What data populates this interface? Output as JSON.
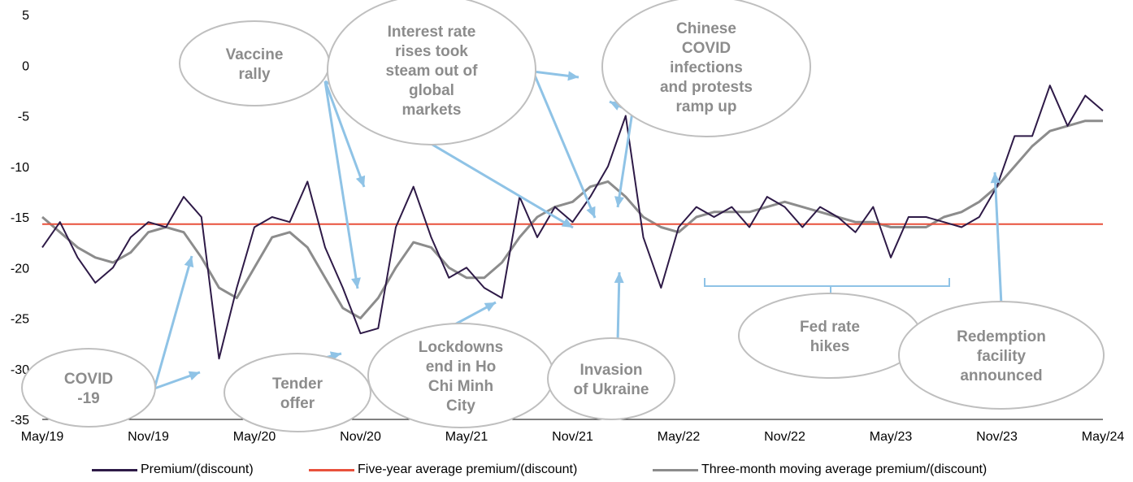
{
  "chart_data": {
    "type": "line",
    "title": "",
    "xlabel": "",
    "ylabel": "",
    "ylim": [
      -35,
      5
    ],
    "yticks": [
      5,
      0,
      -5,
      -10,
      -15,
      -20,
      -25,
      -30,
      -35
    ],
    "xticks": [
      "May/19",
      "Nov/19",
      "May/20",
      "Nov/20",
      "May/21",
      "Nov/21",
      "May/22",
      "Nov/22",
      "May/23",
      "Nov/23",
      "May/24"
    ],
    "xlim": [
      "2019-05",
      "2024-05"
    ],
    "grid": false,
    "legend_position": "bottom",
    "colors": {
      "premium": "#2e1a47",
      "average": "#e8513c",
      "moving_average": "#8c8c8c",
      "annotation_arrow": "#8fc3e6",
      "annotation_text": "#8c8c8c",
      "annotation_border": "#bfbfbf"
    },
    "series": [
      {
        "name": "Premium/(discount)",
        "x": [
          "2019-05",
          "2019-06",
          "2019-07",
          "2019-08",
          "2019-09",
          "2019-10",
          "2019-11",
          "2019-12",
          "2020-01",
          "2020-02",
          "2020-03",
          "2020-04",
          "2020-05",
          "2020-06",
          "2020-07",
          "2020-08",
          "2020-09",
          "2020-10",
          "2020-11",
          "2020-12",
          "2021-01",
          "2021-02",
          "2021-03",
          "2021-04",
          "2021-05",
          "2021-06",
          "2021-07",
          "2021-08",
          "2021-09",
          "2021-10",
          "2021-11",
          "2021-12",
          "2022-01",
          "2022-02",
          "2022-03",
          "2022-04",
          "2022-05",
          "2022-06",
          "2022-07",
          "2022-08",
          "2022-09",
          "2022-10",
          "2022-11",
          "2022-12",
          "2023-01",
          "2023-02",
          "2023-03",
          "2023-04",
          "2023-05",
          "2023-06",
          "2023-07",
          "2023-08",
          "2023-09",
          "2023-10",
          "2023-11",
          "2023-12",
          "2024-01",
          "2024-02",
          "2024-03",
          "2024-04",
          "2024-05"
        ],
        "values": [
          -18,
          -15.5,
          -19,
          -21.5,
          -20,
          -17,
          -15.5,
          -16,
          -13,
          -15,
          -29,
          -22,
          -16,
          -15,
          -15.5,
          -11.5,
          -18,
          -22,
          -26.5,
          -26,
          -16,
          -12,
          -17,
          -21,
          -20,
          -22,
          -23,
          -13,
          -17,
          -14,
          -15.5,
          -13,
          -10,
          -5,
          -17,
          -22,
          -16,
          -14,
          -15,
          -14,
          -16,
          -13,
          -14,
          -16,
          -14,
          -15,
          -16.5,
          -14,
          -19,
          -15,
          -15,
          -15.5,
          -16,
          -15,
          -12,
          -7,
          -7,
          -2,
          -6,
          -3,
          -4.5
        ]
      },
      {
        "name": "Five-year average premium/(discount)",
        "x": [
          "2019-05",
          "2024-05"
        ],
        "values": [
          -15.7,
          -15.7
        ]
      },
      {
        "name": "Three-month moving average premium/(discount)",
        "x": [
          "2019-05",
          "2019-06",
          "2019-07",
          "2019-08",
          "2019-09",
          "2019-10",
          "2019-11",
          "2019-12",
          "2020-01",
          "2020-02",
          "2020-03",
          "2020-04",
          "2020-05",
          "2020-06",
          "2020-07",
          "2020-08",
          "2020-09",
          "2020-10",
          "2020-11",
          "2020-12",
          "2021-01",
          "2021-02",
          "2021-03",
          "2021-04",
          "2021-05",
          "2021-06",
          "2021-07",
          "2021-08",
          "2021-09",
          "2021-10",
          "2021-11",
          "2021-12",
          "2022-01",
          "2022-02",
          "2022-03",
          "2022-04",
          "2022-05",
          "2022-06",
          "2022-07",
          "2022-08",
          "2022-09",
          "2022-10",
          "2022-11",
          "2022-12",
          "2023-01",
          "2023-02",
          "2023-03",
          "2023-04",
          "2023-05",
          "2023-06",
          "2023-07",
          "2023-08",
          "2023-09",
          "2023-10",
          "2023-11",
          "2023-12",
          "2024-01",
          "2024-02",
          "2024-03",
          "2024-04",
          "2024-05"
        ],
        "values": [
          -15,
          -16.5,
          -18,
          -19,
          -19.5,
          -18.5,
          -16.5,
          -16,
          -16.5,
          -19,
          -22,
          -23,
          -20,
          -17,
          -16.5,
          -18,
          -21,
          -24,
          -25,
          -23,
          -20,
          -17.5,
          -18,
          -20,
          -21,
          -21,
          -19.5,
          -17,
          -15,
          -14,
          -13.5,
          -12,
          -11.5,
          -13,
          -15,
          -16,
          -16.5,
          -15,
          -14.5,
          -14.5,
          -14.5,
          -14,
          -13.5,
          -14,
          -14.5,
          -15,
          -15.5,
          -15.5,
          -16,
          -16,
          -16,
          -15,
          -14.5,
          -13.5,
          -12,
          -10,
          -8,
          -6.5,
          -6,
          -5.5,
          -5.5
        ]
      }
    ],
    "annotations": [
      {
        "label": [
          "Vaccine",
          "rally"
        ]
      },
      {
        "label": [
          "Interest rate",
          "rises took",
          "steam out of",
          "global",
          "markets"
        ]
      },
      {
        "label": [
          "Chinese",
          "COVID",
          "infections",
          "and protests",
          "ramp up"
        ]
      },
      {
        "label": [
          "COVID",
          "-19"
        ]
      },
      {
        "label": [
          "Tender",
          "offer"
        ]
      },
      {
        "label": [
          "Lockdowns",
          "end in Ho",
          "Chi Minh",
          "City"
        ]
      },
      {
        "label": [
          "Invasion",
          "of Ukraine"
        ]
      },
      {
        "label": [
          "Fed rate",
          "hikes"
        ]
      },
      {
        "label": [
          "Redemption",
          "facility",
          "announced"
        ]
      }
    ]
  }
}
